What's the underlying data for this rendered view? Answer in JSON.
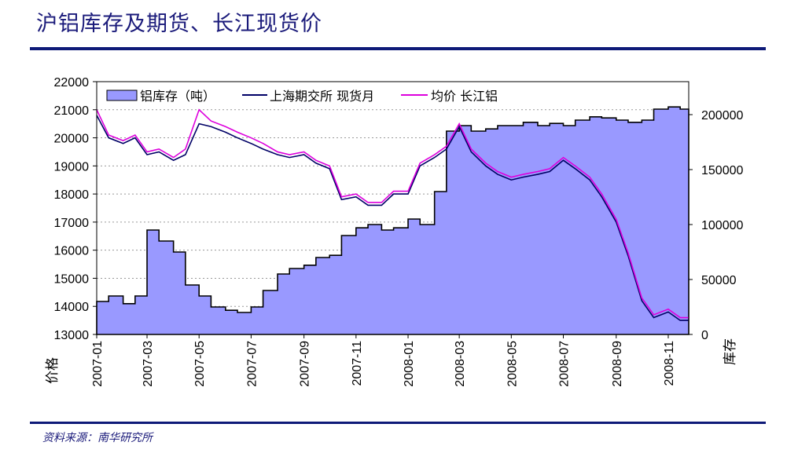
{
  "header": {
    "title": "沪铝库存及期货、长江现货价"
  },
  "footer": {
    "source": "资料来源：南华研究所"
  },
  "chart_data": {
    "type": "line+area",
    "x_dates": [
      "2007-01-01",
      "2007-01-15",
      "2007-02-01",
      "2007-02-15",
      "2007-03-01",
      "2007-03-15",
      "2007-04-01",
      "2007-04-15",
      "2007-05-01",
      "2007-05-15",
      "2007-06-01",
      "2007-06-15",
      "2007-07-01",
      "2007-07-15",
      "2007-08-01",
      "2007-08-15",
      "2007-09-01",
      "2007-09-15",
      "2007-10-01",
      "2007-10-15",
      "2007-11-01",
      "2007-11-15",
      "2007-12-01",
      "2007-12-15",
      "2008-01-01",
      "2008-01-15",
      "2008-02-01",
      "2008-02-15",
      "2008-03-01",
      "2008-03-15",
      "2008-04-01",
      "2008-04-15",
      "2008-05-01",
      "2008-05-15",
      "2008-06-01",
      "2008-06-15",
      "2008-07-01",
      "2008-07-15",
      "2008-08-01",
      "2008-08-15",
      "2008-09-01",
      "2008-09-15",
      "2008-10-01",
      "2008-10-15",
      "2008-11-01",
      "2008-11-15",
      "2008-11-25"
    ],
    "series": [
      {
        "name": "铝库存（吨）",
        "axis": "right",
        "kind": "area",
        "color": "#9999ff",
        "values": [
          30000,
          35000,
          28000,
          35000,
          95000,
          85000,
          75000,
          45000,
          35000,
          25000,
          22000,
          20000,
          25000,
          40000,
          55000,
          60000,
          63000,
          70000,
          72000,
          90000,
          97000,
          100000,
          95000,
          97000,
          105000,
          100000,
          130000,
          185000,
          190000,
          185000,
          187000,
          190000,
          190000,
          193000,
          190000,
          192000,
          190000,
          195000,
          198000,
          197000,
          195000,
          193000,
          195000,
          205000,
          207000,
          205000,
          200000
        ]
      },
      {
        "name": "上海期交所 现货月",
        "axis": "left",
        "kind": "line",
        "color": "#000066",
        "values": [
          20800,
          20000,
          19800,
          20000,
          19400,
          19500,
          19200,
          19400,
          20500,
          20400,
          20200,
          20000,
          19800,
          19600,
          19400,
          19300,
          19400,
          19100,
          18900,
          17800,
          17900,
          17600,
          17600,
          18000,
          18000,
          19000,
          19300,
          19600,
          20400,
          19500,
          19000,
          18700,
          18500,
          18600,
          18700,
          18800,
          19200,
          18900,
          18500,
          17900,
          17000,
          15800,
          14200,
          13600,
          13800,
          13500,
          13500
        ]
      },
      {
        "name": "均价 长江铝",
        "axis": "left",
        "kind": "line",
        "color": "#dd00dd",
        "values": [
          21000,
          20100,
          19900,
          20100,
          19500,
          19600,
          19300,
          19600,
          21000,
          20600,
          20400,
          20200,
          20000,
          19800,
          19500,
          19400,
          19500,
          19200,
          19000,
          17900,
          18000,
          17700,
          17700,
          18100,
          18100,
          19100,
          19400,
          19700,
          20500,
          19600,
          19100,
          18800,
          18600,
          18700,
          18800,
          18900,
          19300,
          19000,
          18600,
          18000,
          17100,
          15900,
          14300,
          13700,
          13900,
          13600,
          13600
        ]
      }
    ],
    "y_left": {
      "label": "价格",
      "range": [
        13000,
        22000
      ],
      "ticks": [
        "13000",
        "14000",
        "15000",
        "16000",
        "17000",
        "18000",
        "19000",
        "20000",
        "21000",
        "22000"
      ]
    },
    "y_right": {
      "label": "库存",
      "range": [
        0,
        230000
      ],
      "ticks": [
        "0",
        "50000",
        "100000",
        "150000",
        "200000"
      ]
    },
    "x_ticks": [
      "2007-01",
      "2007-03",
      "2007-05",
      "2007-07",
      "2007-09",
      "2007-11",
      "2008-01",
      "2008-03",
      "2008-05",
      "2008-07",
      "2008-09",
      "2008-11"
    ],
    "grid": "horizontal dashed",
    "legend": "top"
  }
}
